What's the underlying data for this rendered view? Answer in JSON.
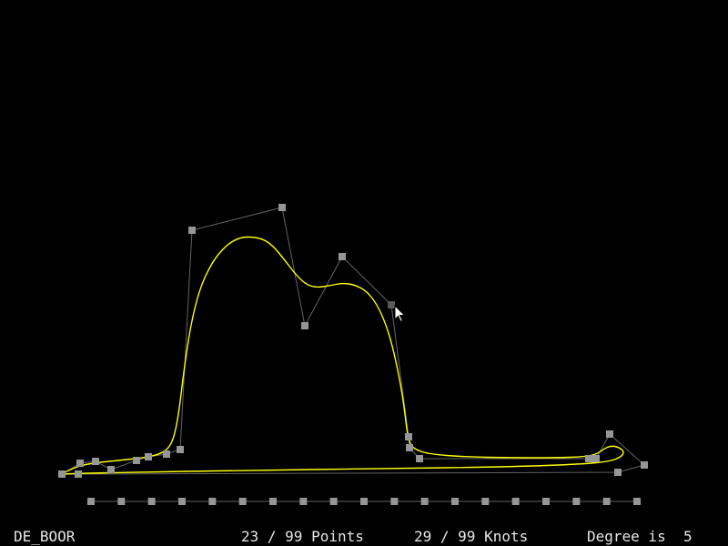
{
  "status": {
    "mode": "DE_BOOR",
    "points": "23 / 99 Points",
    "knots": "29 / 99 Knots",
    "degree": "Degree is  5"
  },
  "colors": {
    "background": "#000000",
    "curve": "#ffff00",
    "control_polygon": "#646464",
    "control_point": "#969696",
    "selected_point": "#5a5a5a",
    "knot_marker": "#969696",
    "text": "#e6e6e6"
  }
}
